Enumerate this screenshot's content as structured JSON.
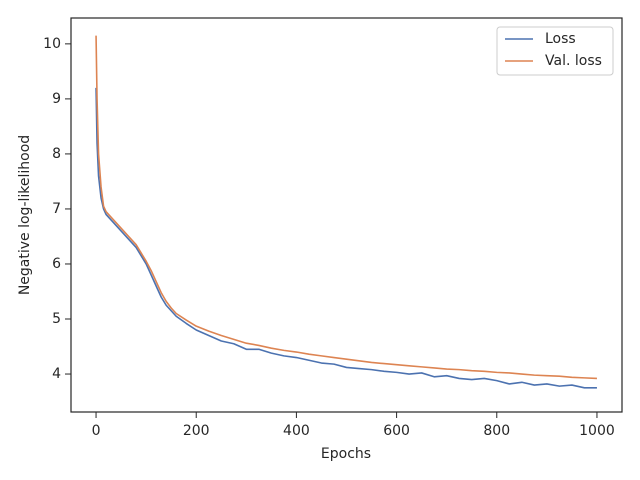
{
  "chart_data": {
    "type": "line",
    "x_label": "Epochs",
    "y_label": "Negative log-likelihood",
    "x": [
      0,
      2,
      5,
      10,
      15,
      20,
      30,
      40,
      50,
      60,
      70,
      80,
      90,
      100,
      110,
      120,
      130,
      140,
      150,
      160,
      180,
      200,
      225,
      250,
      275,
      300,
      325,
      350,
      375,
      400,
      425,
      450,
      475,
      500,
      525,
      550,
      575,
      600,
      625,
      650,
      675,
      700,
      725,
      750,
      775,
      800,
      825,
      850,
      875,
      900,
      925,
      950,
      975,
      1000
    ],
    "series": [
      {
        "name": "Loss",
        "color": "#4c72b0",
        "values": [
          9.2,
          8.2,
          7.6,
          7.2,
          7.0,
          6.9,
          6.8,
          6.7,
          6.6,
          6.5,
          6.4,
          6.3,
          6.15,
          6.0,
          5.8,
          5.6,
          5.4,
          5.25,
          5.15,
          5.05,
          4.92,
          4.8,
          4.7,
          4.6,
          4.55,
          4.45,
          4.45,
          4.38,
          4.33,
          4.3,
          4.25,
          4.2,
          4.18,
          4.12,
          4.1,
          4.08,
          4.05,
          4.03,
          4.0,
          4.02,
          3.95,
          3.97,
          3.92,
          3.9,
          3.92,
          3.88,
          3.82,
          3.85,
          3.8,
          3.82,
          3.78,
          3.8,
          3.75,
          3.75
        ]
      },
      {
        "name": "Val. loss",
        "color": "#dd8452",
        "values": [
          10.15,
          9.0,
          8.0,
          7.4,
          7.05,
          6.95,
          6.85,
          6.75,
          6.65,
          6.55,
          6.45,
          6.35,
          6.2,
          6.05,
          5.88,
          5.68,
          5.48,
          5.32,
          5.2,
          5.1,
          4.98,
          4.87,
          4.78,
          4.7,
          4.63,
          4.56,
          4.52,
          4.47,
          4.43,
          4.4,
          4.36,
          4.33,
          4.3,
          4.27,
          4.24,
          4.21,
          4.19,
          4.17,
          4.15,
          4.13,
          4.11,
          4.09,
          4.08,
          4.06,
          4.05,
          4.03,
          4.02,
          4.0,
          3.98,
          3.97,
          3.96,
          3.94,
          3.93,
          3.92
        ]
      }
    ],
    "xlim": [
      -50,
      1050
    ],
    "ylim": [
      3.31,
      10.47
    ],
    "xticks": [
      0,
      200,
      400,
      600,
      800,
      1000
    ],
    "yticks": [
      4,
      5,
      6,
      7,
      8,
      9,
      10
    ],
    "legend": "upper right"
  }
}
